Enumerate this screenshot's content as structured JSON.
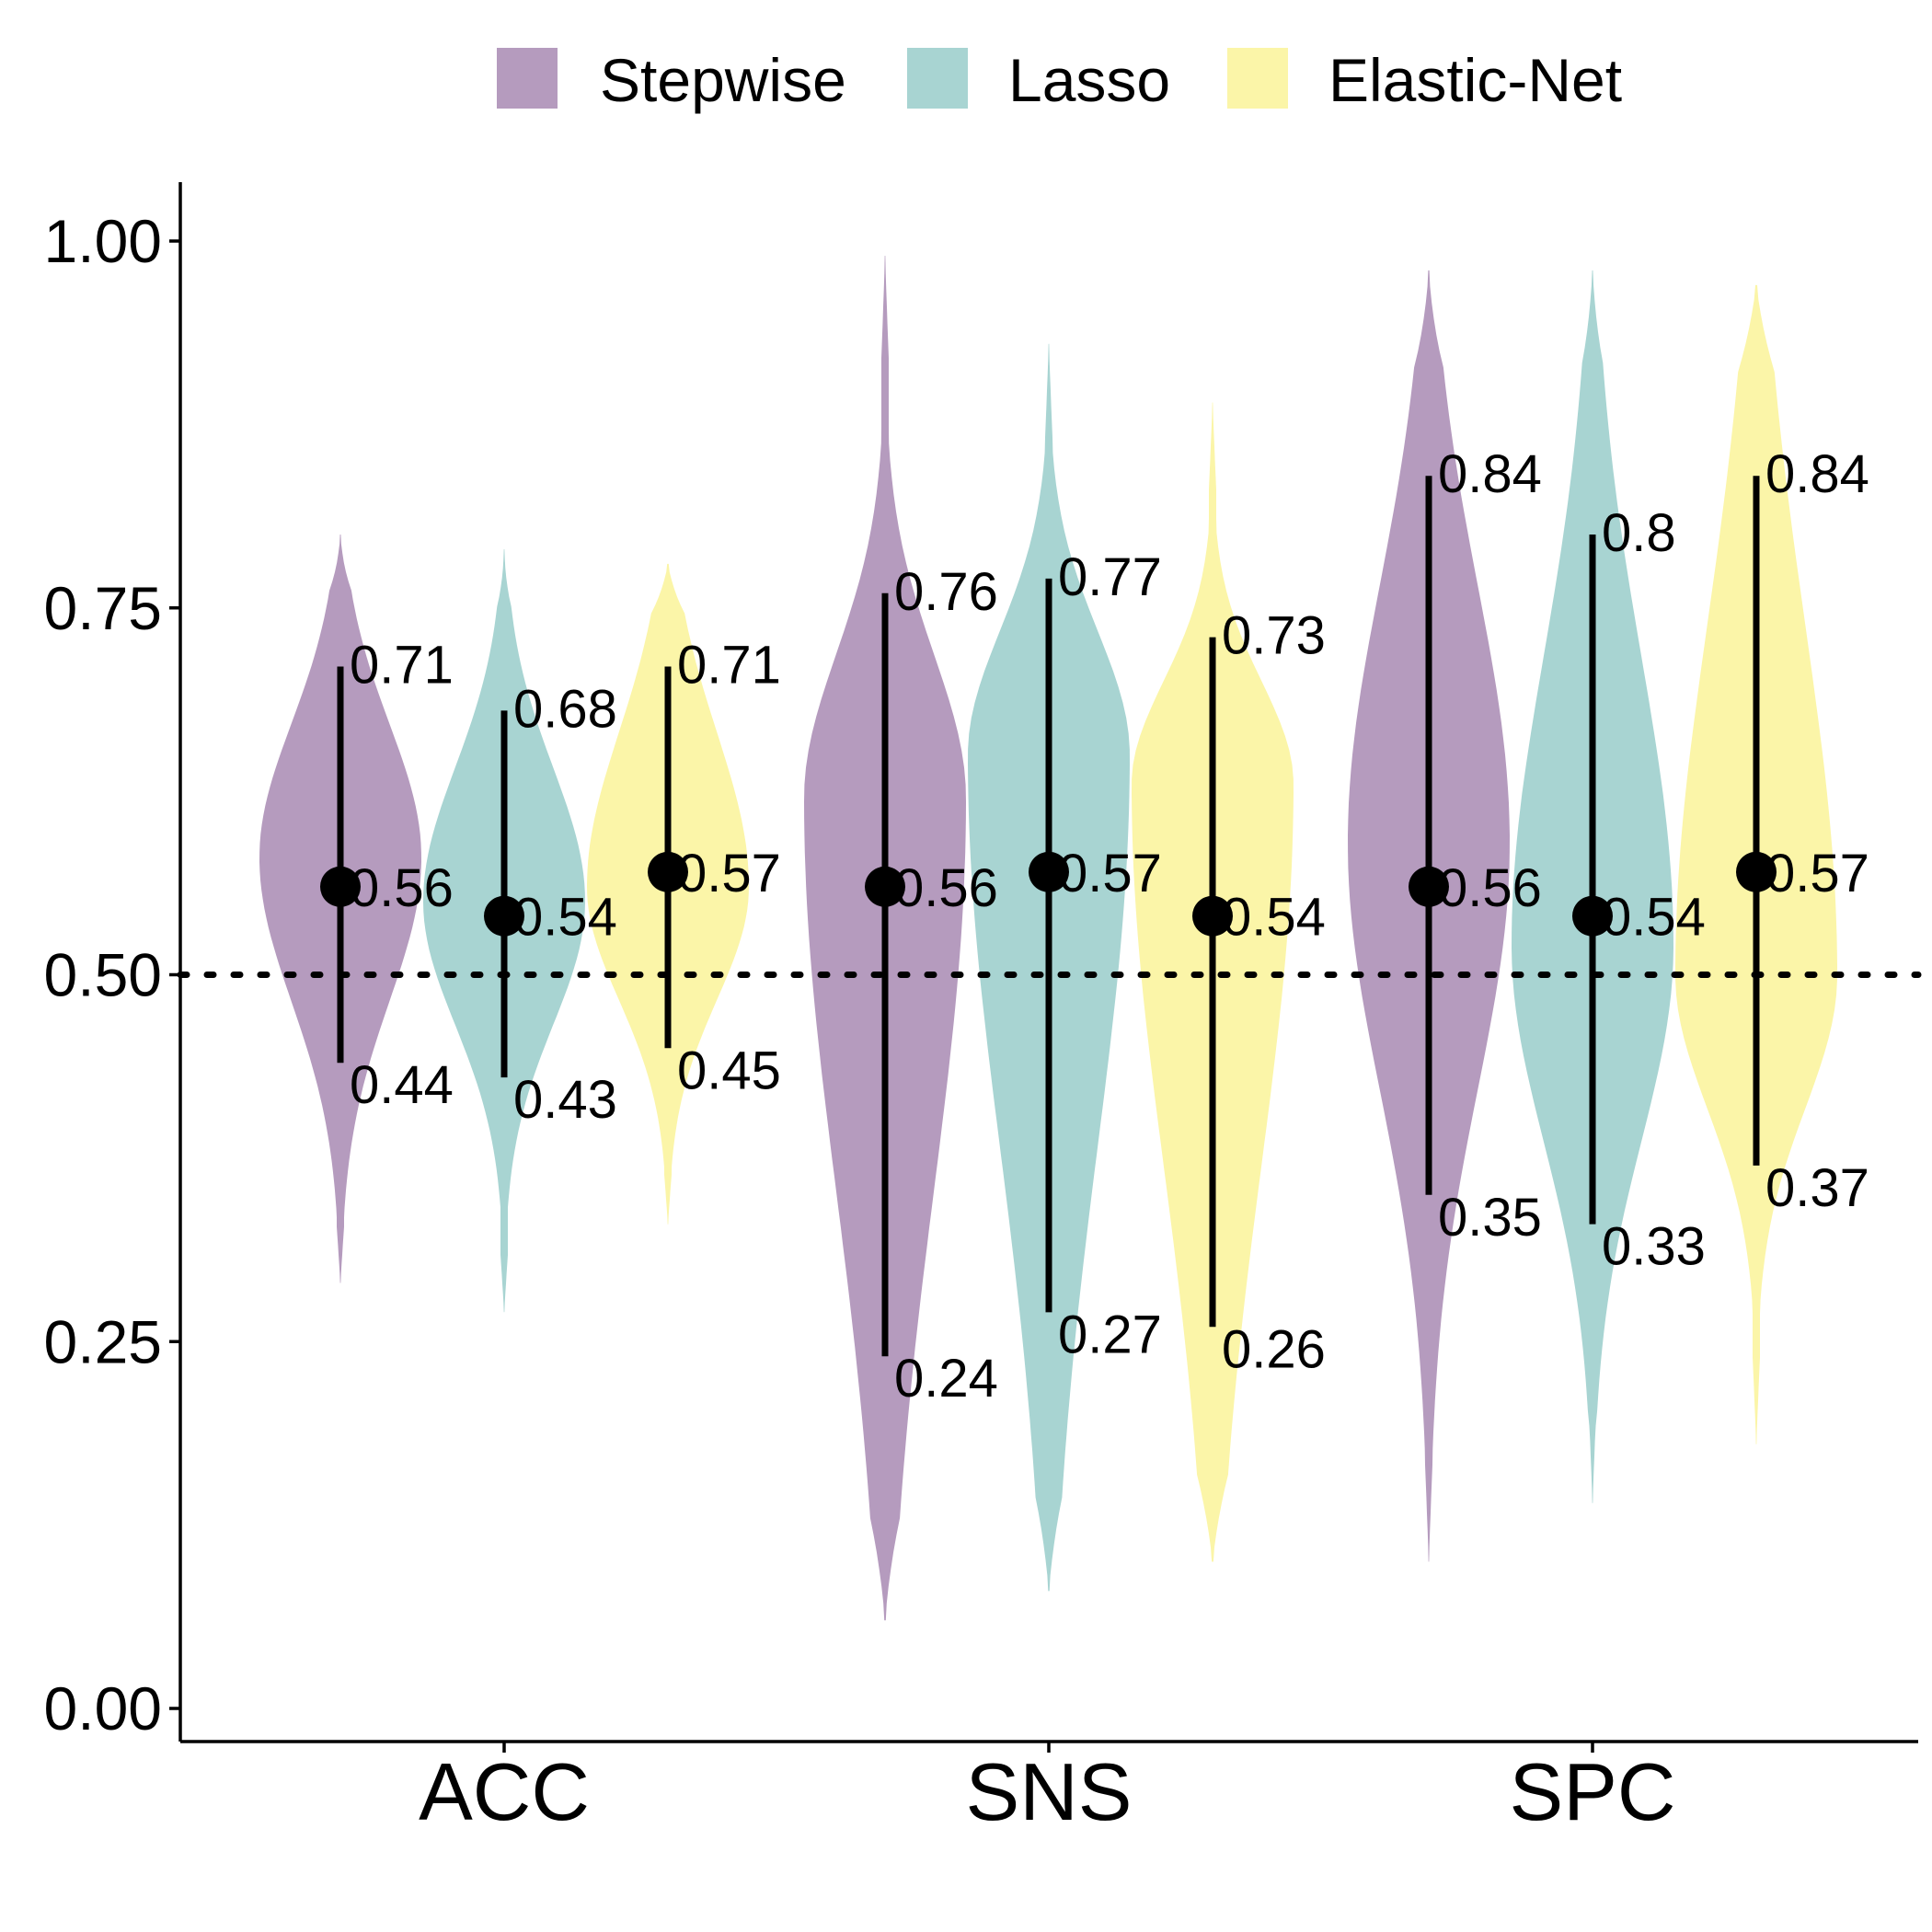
{
  "chart_data": {
    "type": "violin",
    "categories": [
      "ACC",
      "SNS",
      "SPC"
    ],
    "ylim": [
      0,
      1
    ],
    "yticks": [
      "0.00",
      "0.25",
      "0.50",
      "0.75",
      "1.00"
    ],
    "reference_line": 0.5,
    "legend": {
      "placement": "top"
    },
    "series": [
      {
        "name": "Stepwise",
        "color": "#b59bbe",
        "points": [
          {
            "category": "ACC",
            "median": 0.56,
            "lower": 0.44,
            "upper": 0.71,
            "min": 0.29,
            "max": 0.8,
            "mode": 0.58
          },
          {
            "category": "SNS",
            "median": 0.56,
            "lower": 0.24,
            "upper": 0.76,
            "min": 0.06,
            "max": 0.99,
            "mode": 0.62
          },
          {
            "category": "SPC",
            "median": 0.56,
            "lower": 0.35,
            "upper": 0.84,
            "min": 0.1,
            "max": 0.98,
            "mode": 0.59
          }
        ]
      },
      {
        "name": "Lasso",
        "color": "#a8d4d2",
        "points": [
          {
            "category": "ACC",
            "median": 0.54,
            "lower": 0.43,
            "upper": 0.68,
            "min": 0.27,
            "max": 0.79,
            "mode": 0.55
          },
          {
            "category": "SNS",
            "median": 0.57,
            "lower": 0.27,
            "upper": 0.77,
            "min": 0.08,
            "max": 0.93,
            "mode": 0.65
          },
          {
            "category": "SPC",
            "median": 0.54,
            "lower": 0.33,
            "upper": 0.8,
            "min": 0.14,
            "max": 0.98,
            "mode": 0.52
          }
        ]
      },
      {
        "name": "Elastic-Net",
        "color": "#fbf5a8",
        "points": [
          {
            "category": "ACC",
            "median": 0.57,
            "lower": 0.45,
            "upper": 0.71,
            "min": 0.33,
            "max": 0.78,
            "mode": 0.56
          },
          {
            "category": "SNS",
            "median": 0.54,
            "lower": 0.26,
            "upper": 0.73,
            "min": 0.1,
            "max": 0.89,
            "mode": 0.63
          },
          {
            "category": "SPC",
            "median": 0.57,
            "lower": 0.37,
            "upper": 0.84,
            "min": 0.18,
            "max": 0.97,
            "mode": 0.5
          }
        ]
      }
    ]
  }
}
